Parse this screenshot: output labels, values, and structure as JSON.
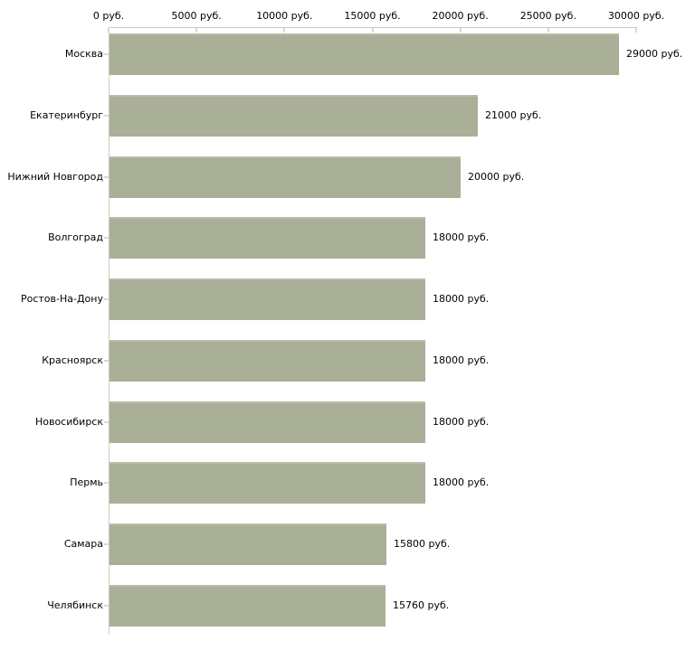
{
  "chart": {
    "colors": {
      "background": "#ffffff",
      "bar_fill": "#aaaf97",
      "bar_top_edge": "#b9bda8",
      "axis_line": "#cbcbc3",
      "tick_mark": "#d9dac6",
      "text": "#000000"
    }
  },
  "chart_data": {
    "type": "bar",
    "orientation": "horizontal",
    "title": "",
    "xlabel": "",
    "ylabel": "",
    "units": "руб.",
    "xlim": [
      0,
      30000
    ],
    "x_ticks": [
      0,
      5000,
      10000,
      15000,
      20000,
      25000,
      30000
    ],
    "x_tick_labels": [
      "0 руб.",
      "5000 руб.",
      "10000 руб.",
      "15000 руб.",
      "20000 руб.",
      "25000 руб.",
      "30000 руб."
    ],
    "categories": [
      "Москва",
      "Екатеринбург",
      "Нижний Новгород",
      "Волгоград",
      "Ростов-На-Дону",
      "Красноярск",
      "Новосибирск",
      "Пермь",
      "Самара",
      "Челябинск"
    ],
    "values": [
      29000,
      21000,
      20000,
      18000,
      18000,
      18000,
      18000,
      18000,
      15800,
      15760
    ],
    "value_labels": [
      "29000 руб.",
      "21000 руб.",
      "20000 руб.",
      "18000 руб.",
      "18000 руб.",
      "18000 руб.",
      "18000 руб.",
      "18000 руб.",
      "15800 руб.",
      "15760 руб."
    ],
    "grid": false,
    "legend_position": "none"
  }
}
